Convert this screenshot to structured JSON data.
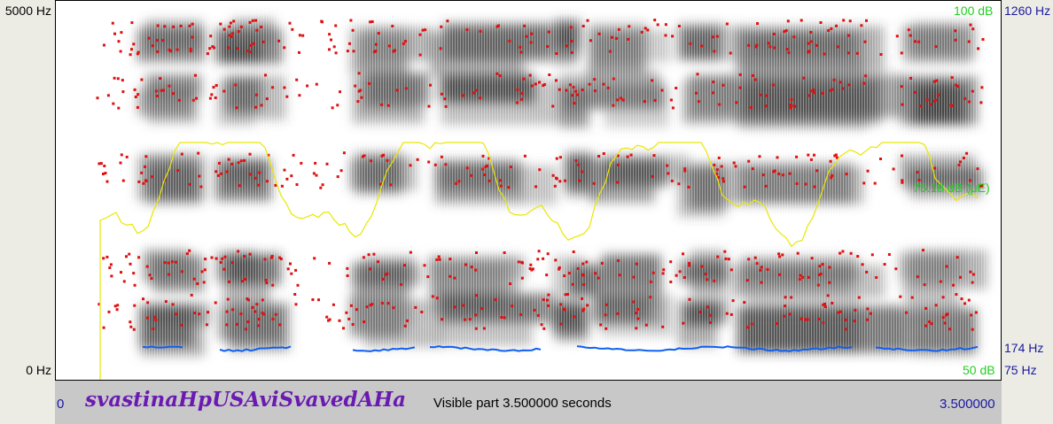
{
  "axes": {
    "freq_top": "5000 Hz",
    "freq_bottom": "0 Hz",
    "pitch_top": "1260 Hz",
    "pitch_mid": "174 Hz",
    "pitch_bottom": "75 Hz",
    "intensity_top": "100 dB",
    "intensity_bottom": "50 dB",
    "intensity_cursor": "75.18 dB (μE)"
  },
  "bottom_bar": {
    "start": "0",
    "sound_name": "svastinaHpUSAviSvavedAHa",
    "visible_part": "Visible part 3.500000 seconds",
    "end": "3.500000"
  },
  "colors": {
    "formant": "#e01010",
    "pitch": "#1060f0",
    "intensity": "#e8e800",
    "label_green": "#22d022",
    "label_blue": "#1a1aa0",
    "name_purple": "#6a1ab0"
  }
}
